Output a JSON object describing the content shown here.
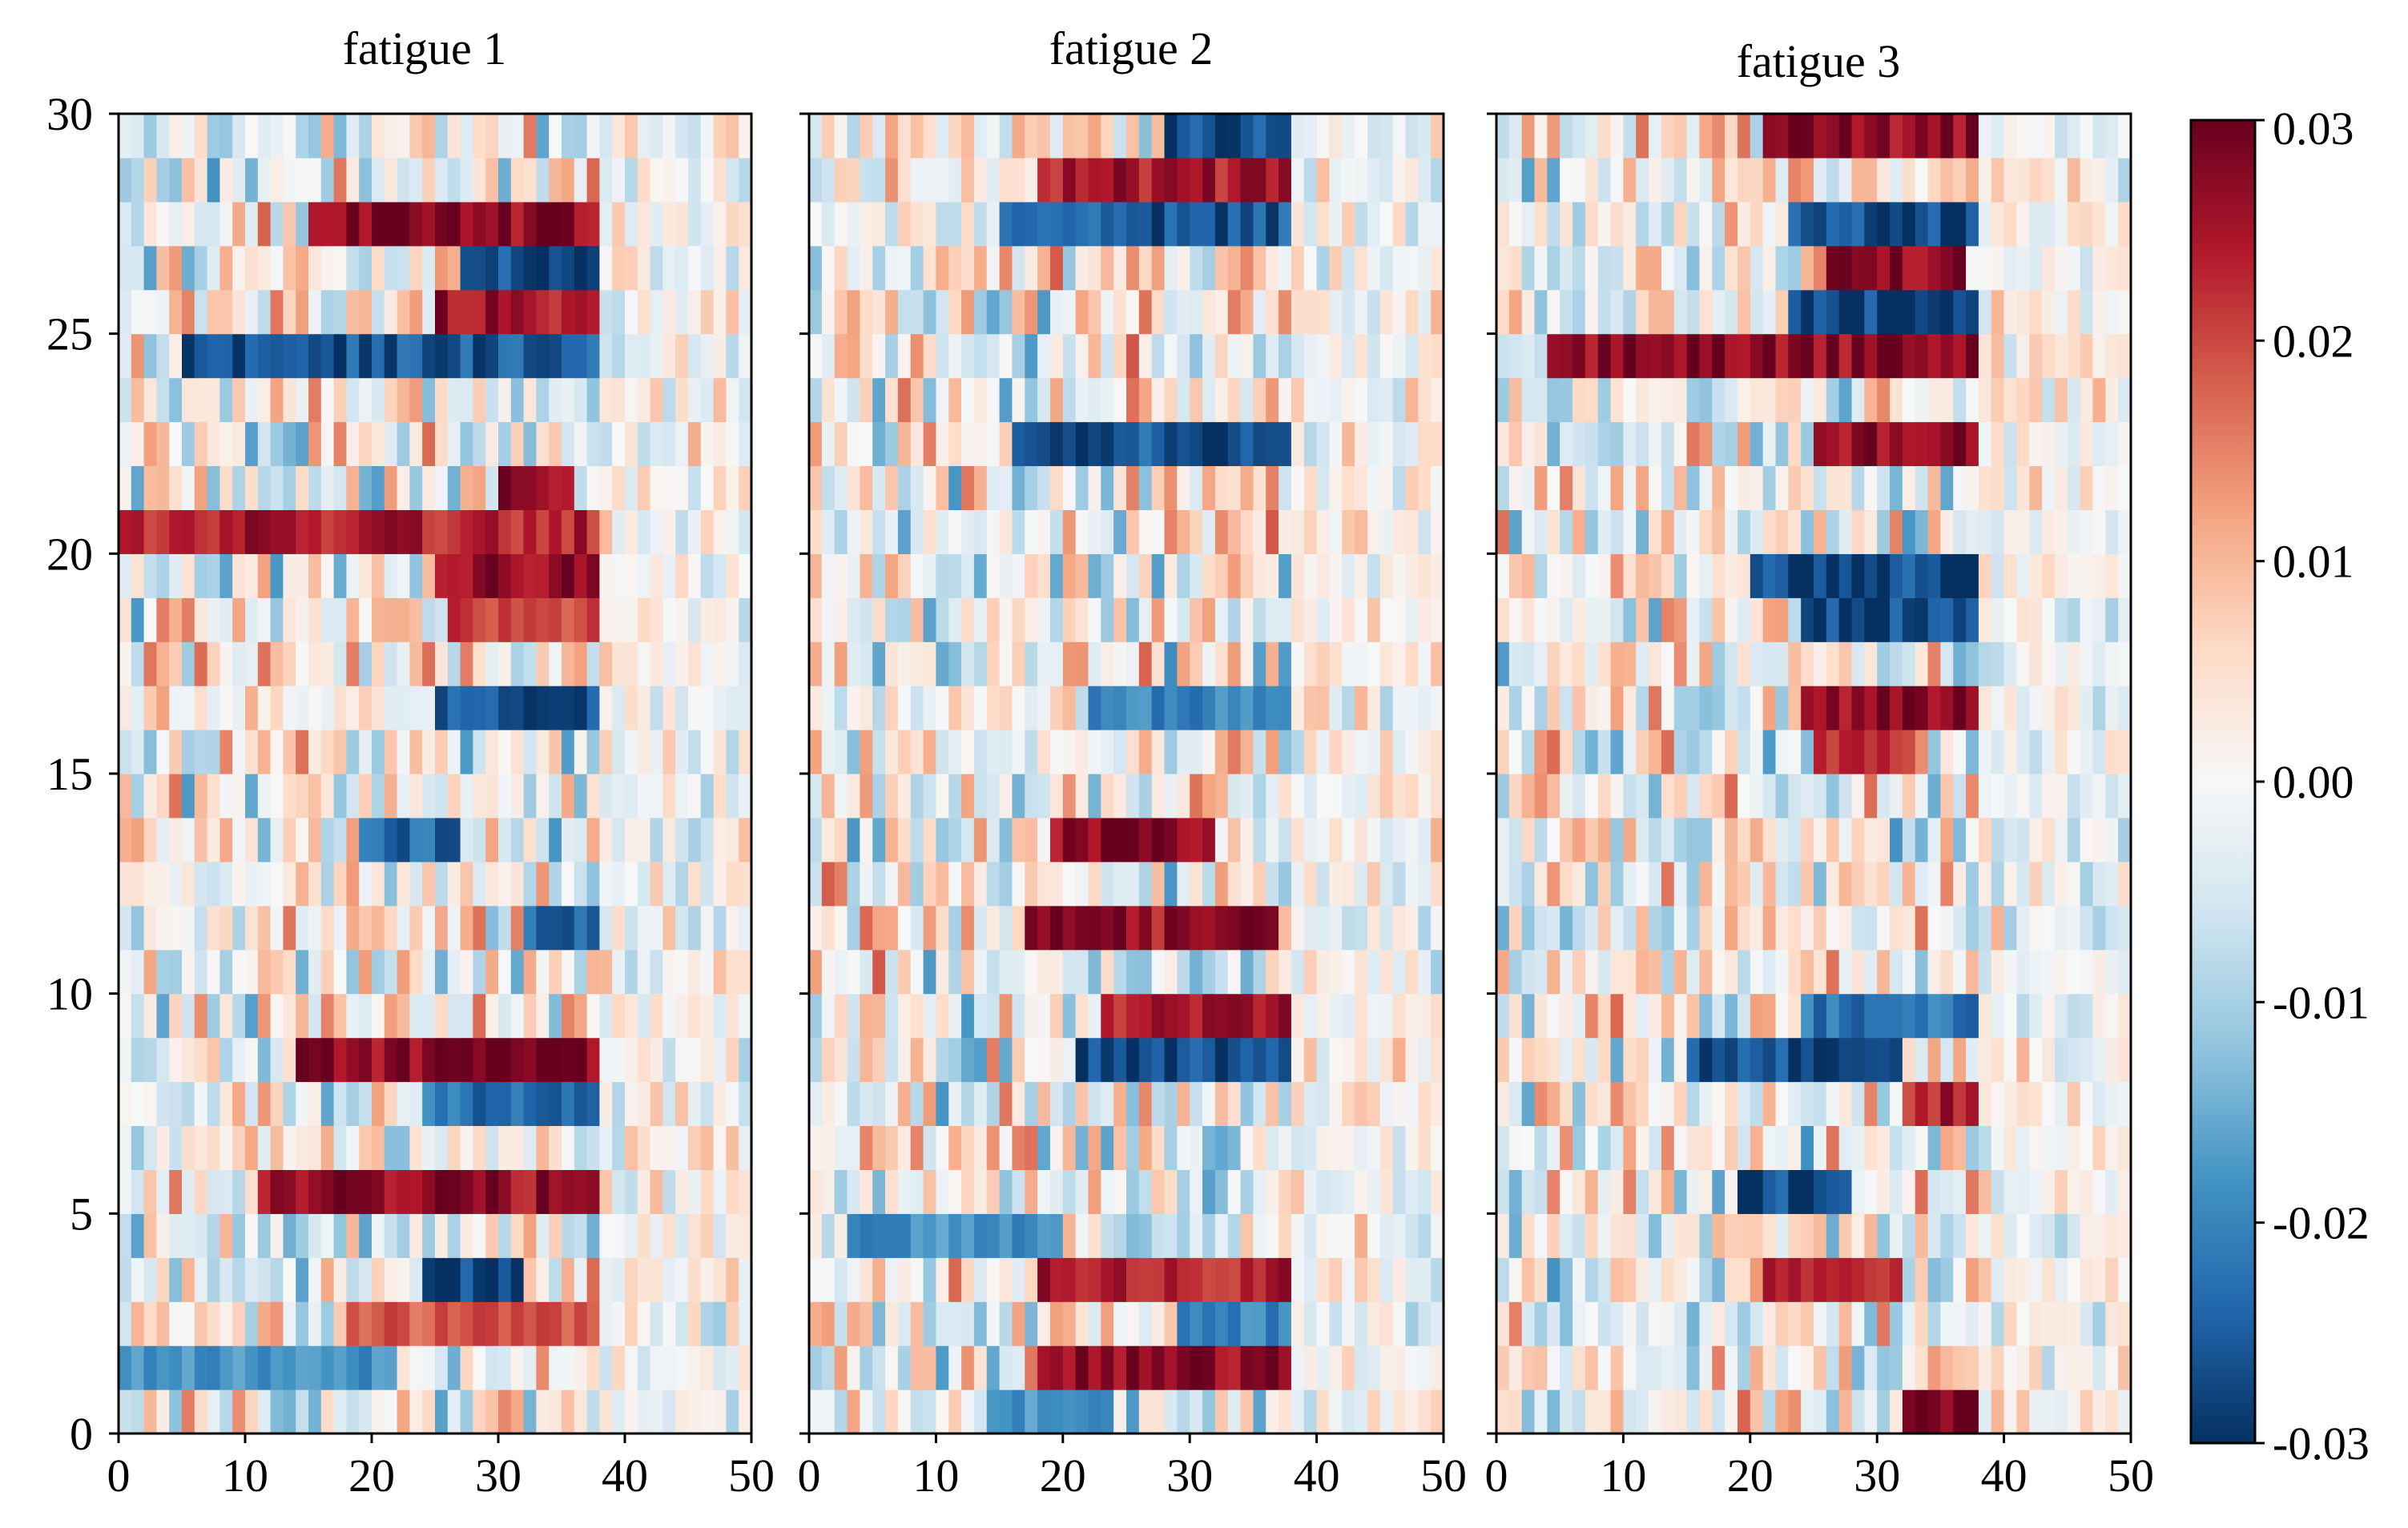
{
  "chart_data": {
    "type": "heatmap",
    "panels": [
      {
        "title": "fatigue 1",
        "xlim": [
          0,
          50
        ],
        "ylim": [
          0,
          30
        ],
        "xticks": [
          0,
          10,
          20,
          30,
          40,
          50
        ],
        "yticks": [
          0,
          5,
          10,
          15,
          20,
          25,
          30
        ],
        "strong_bands": [
          {
            "row": 27,
            "x_from": 15,
            "x_to": 38,
            "value": 0.03
          },
          {
            "row": 26,
            "x_from": 27,
            "x_to": 38,
            "value": -0.03
          },
          {
            "row": 25,
            "x_from": 25,
            "x_to": 38,
            "value": 0.028
          },
          {
            "row": 24,
            "x_from": 5,
            "x_to": 38,
            "value": -0.028
          },
          {
            "row": 21,
            "x_from": 30,
            "x_to": 36,
            "value": 0.028
          },
          {
            "row": 20,
            "x_from": 0,
            "x_to": 38,
            "value": 0.026
          },
          {
            "row": 19,
            "x_from": 25,
            "x_to": 38,
            "value": 0.03
          },
          {
            "row": 18,
            "x_from": 26,
            "x_to": 38,
            "value": 0.022
          },
          {
            "row": 16,
            "x_from": 25,
            "x_to": 38,
            "value": -0.028
          },
          {
            "row": 13,
            "x_from": 19,
            "x_to": 27,
            "value": -0.026
          },
          {
            "row": 11,
            "x_from": 32,
            "x_to": 38,
            "value": -0.026
          },
          {
            "row": 8,
            "x_from": 14,
            "x_to": 38,
            "value": 0.03
          },
          {
            "row": 7,
            "x_from": 24,
            "x_to": 38,
            "value": -0.024
          },
          {
            "row": 5,
            "x_from": 11,
            "x_to": 38,
            "value": 0.028
          },
          {
            "row": 3,
            "x_from": 24,
            "x_to": 32,
            "value": -0.03
          },
          {
            "row": 2,
            "x_from": 18,
            "x_to": 38,
            "value": 0.02
          },
          {
            "row": 1,
            "x_from": 0,
            "x_to": 22,
            "value": -0.02
          }
        ]
      },
      {
        "title": "fatigue 2",
        "xlim": [
          0,
          50
        ],
        "ylim": [
          0,
          30
        ],
        "xticks": [
          0,
          10,
          20,
          30,
          40,
          50
        ],
        "yticks": [
          0,
          5,
          10,
          15,
          20,
          25,
          30
        ],
        "strong_bands": [
          {
            "row": 29,
            "x_from": 28,
            "x_to": 38,
            "value": -0.03
          },
          {
            "row": 28,
            "x_from": 18,
            "x_to": 38,
            "value": 0.026
          },
          {
            "row": 27,
            "x_from": 15,
            "x_to": 38,
            "value": -0.028
          },
          {
            "row": 22,
            "x_from": 16,
            "x_to": 38,
            "value": -0.028
          },
          {
            "row": 16,
            "x_from": 22,
            "x_to": 38,
            "value": -0.022
          },
          {
            "row": 13,
            "x_from": 19,
            "x_to": 32,
            "value": 0.028
          },
          {
            "row": 11,
            "x_from": 17,
            "x_to": 37,
            "value": 0.028
          },
          {
            "row": 9,
            "x_from": 23,
            "x_to": 38,
            "value": 0.026
          },
          {
            "row": 8,
            "x_from": 21,
            "x_to": 38,
            "value": -0.03
          },
          {
            "row": 4,
            "x_from": 3,
            "x_to": 20,
            "value": -0.02
          },
          {
            "row": 3,
            "x_from": 18,
            "x_to": 38,
            "value": 0.026
          },
          {
            "row": 2,
            "x_from": 29,
            "x_to": 38,
            "value": -0.022
          },
          {
            "row": 1,
            "x_from": 18,
            "x_to": 38,
            "value": 0.03
          },
          {
            "row": 0,
            "x_from": 14,
            "x_to": 24,
            "value": -0.02
          }
        ]
      },
      {
        "title": "fatigue 3",
        "xlim": [
          0,
          50
        ],
        "ylim": [
          0,
          30
        ],
        "xticks": [
          0,
          10,
          20,
          30,
          40,
          50
        ],
        "yticks": [
          0,
          5,
          10,
          15,
          20,
          25,
          30
        ],
        "strong_bands": [
          {
            "row": 29,
            "x_from": 21,
            "x_to": 38,
            "value": 0.03
          },
          {
            "row": 27,
            "x_from": 23,
            "x_to": 38,
            "value": -0.03
          },
          {
            "row": 26,
            "x_from": 26,
            "x_to": 37,
            "value": 0.03
          },
          {
            "row": 25,
            "x_from": 23,
            "x_to": 38,
            "value": -0.03
          },
          {
            "row": 24,
            "x_from": 4,
            "x_to": 38,
            "value": 0.03
          },
          {
            "row": 22,
            "x_from": 25,
            "x_to": 38,
            "value": 0.03
          },
          {
            "row": 19,
            "x_from": 20,
            "x_to": 38,
            "value": -0.03
          },
          {
            "row": 18,
            "x_from": 24,
            "x_to": 38,
            "value": -0.03
          },
          {
            "row": 16,
            "x_from": 24,
            "x_to": 38,
            "value": 0.03
          },
          {
            "row": 15,
            "x_from": 25,
            "x_to": 33,
            "value": 0.026
          },
          {
            "row": 9,
            "x_from": 24,
            "x_to": 38,
            "value": -0.024
          },
          {
            "row": 8,
            "x_from": 15,
            "x_to": 32,
            "value": -0.03
          },
          {
            "row": 7,
            "x_from": 32,
            "x_to": 38,
            "value": 0.026
          },
          {
            "row": 5,
            "x_from": 19,
            "x_to": 28,
            "value": -0.03
          },
          {
            "row": 3,
            "x_from": 21,
            "x_to": 32,
            "value": 0.024
          },
          {
            "row": 0,
            "x_from": 32,
            "x_to": 38,
            "value": 0.03
          }
        ]
      }
    ],
    "colorbar": {
      "colormap": "RdBu_r",
      "vmin": -0.03,
      "vmax": 0.03,
      "ticks": [
        0.03,
        0.02,
        0.01,
        0.0,
        -0.01,
        -0.02,
        -0.03
      ],
      "tick_labels": [
        "0.03",
        "0.02",
        "0.01",
        "0.00",
        "-0.01",
        "-0.02",
        "-0.03"
      ]
    },
    "rows": 30,
    "cols": 50,
    "active_columns": 38,
    "background_noise": 0.012
  }
}
